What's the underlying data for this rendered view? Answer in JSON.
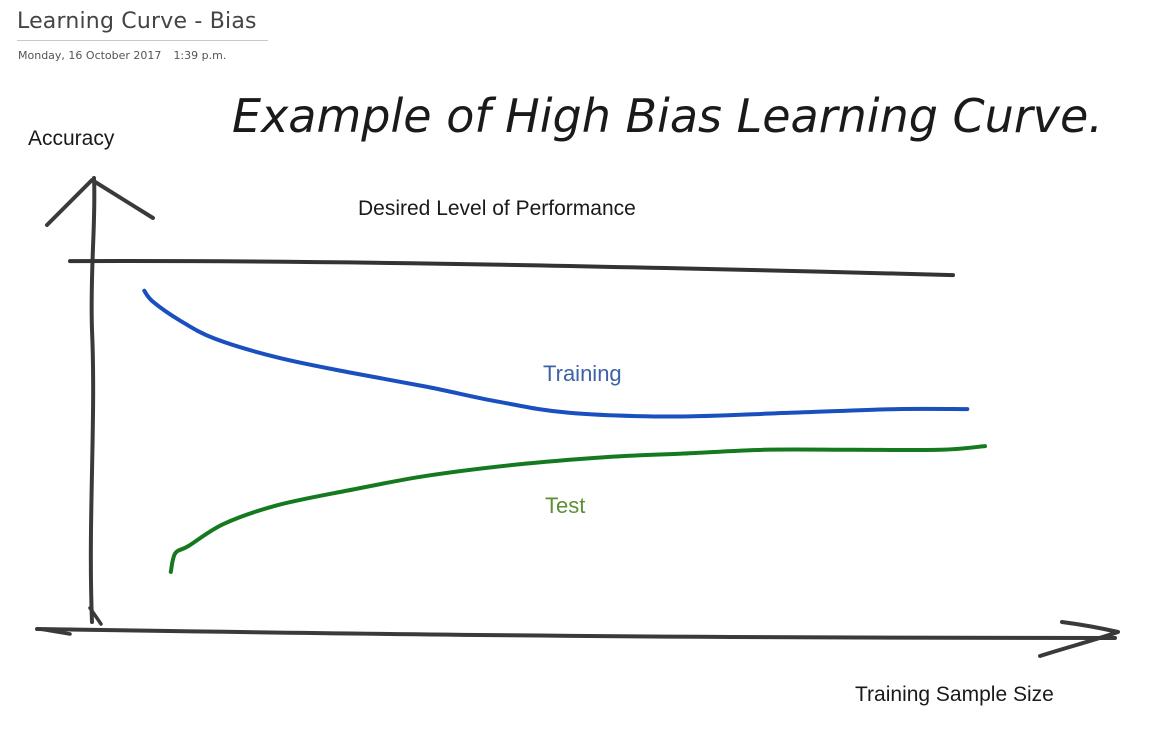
{
  "page": {
    "title": "Learning Curve - Bias",
    "date": "Monday, 16 October 2017",
    "time": "1:39 p.m."
  },
  "chart_data": {
    "type": "line",
    "title": "Example of High Bias Learning Curve.",
    "ylabel": "Accuracy",
    "xlabel": "Training Sample Size",
    "xlim": [
      0,
      1
    ],
    "ylim": [
      0,
      1
    ],
    "grid": false,
    "reference_line": {
      "name": "Desired Level of Performance",
      "y": 0.97,
      "color": "#333333"
    },
    "series": [
      {
        "name": "Training",
        "color": "#1a4fbf",
        "label_color": "#3e62a8",
        "x": [
          0.05,
          0.06,
          0.09,
          0.13,
          0.2,
          0.28,
          0.37,
          0.45,
          0.53,
          0.65,
          0.78,
          0.9,
          0.98
        ],
        "y": [
          0.89,
          0.86,
          0.81,
          0.76,
          0.71,
          0.67,
          0.63,
          0.59,
          0.56,
          0.55,
          0.56,
          0.57,
          0.57
        ]
      },
      {
        "name": "Test",
        "color": "#157a1f",
        "label_color": "#5f8f35",
        "x": [
          0.08,
          0.085,
          0.1,
          0.14,
          0.2,
          0.28,
          0.37,
          0.47,
          0.57,
          0.66,
          0.75,
          0.85,
          0.95,
          1.0
        ],
        "y": [
          0.13,
          0.18,
          0.2,
          0.26,
          0.31,
          0.35,
          0.39,
          0.42,
          0.44,
          0.45,
          0.46,
          0.46,
          0.46,
          0.47
        ]
      }
    ]
  }
}
